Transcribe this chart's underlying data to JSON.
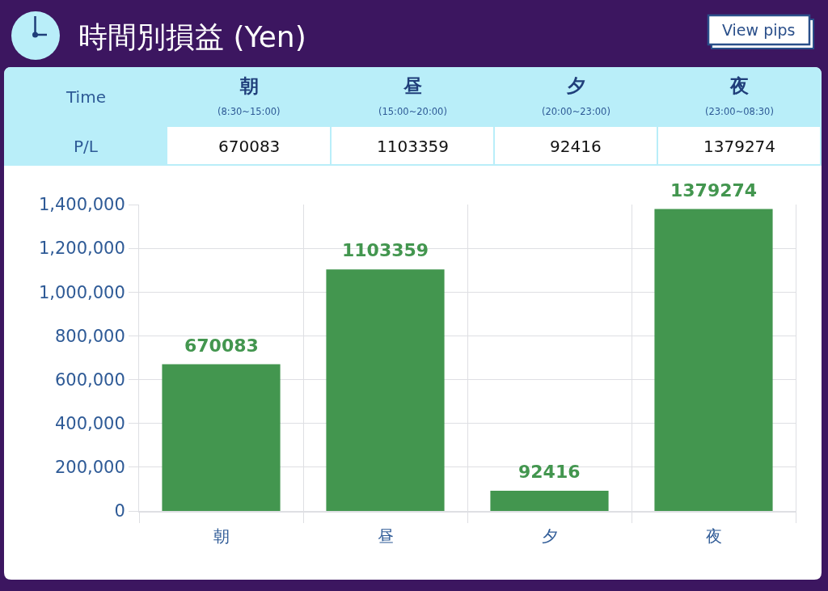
{
  "chart_data": {
    "type": "bar",
    "title": "時間別損益 (Yen)",
    "categories": [
      "朝",
      "昼",
      "夕",
      "夜"
    ],
    "values": [
      670083,
      1103359,
      92416,
      1379274
    ],
    "color": "#43964f",
    "ylim": [
      0,
      1400000
    ],
    "yticks": [
      0,
      {
        "value": 200000,
        "label": "200,000"
      },
      {
        "value": 400000,
        "label": "400,000"
      },
      {
        "value": 600000,
        "label": "600,000"
      },
      {
        "value": 800000,
        "label": "800,000"
      },
      {
        "value": 1000000,
        "label": "1,000,000"
      },
      {
        "value": 1200000,
        "label": "1,200,000"
      },
      {
        "value": 1400000,
        "label": "1,400,000"
      }
    ],
    "grid": true,
    "data_labels": true,
    "annotations": [
      "Time",
      "P/L",
      "(8:30~15:00)",
      "(15:00~20:00)",
      "(20:00~23:00)",
      "(23:00~08:30)",
      "670083",
      "1103359",
      "92416",
      "1379274",
      "View pips"
    ]
  }
}
